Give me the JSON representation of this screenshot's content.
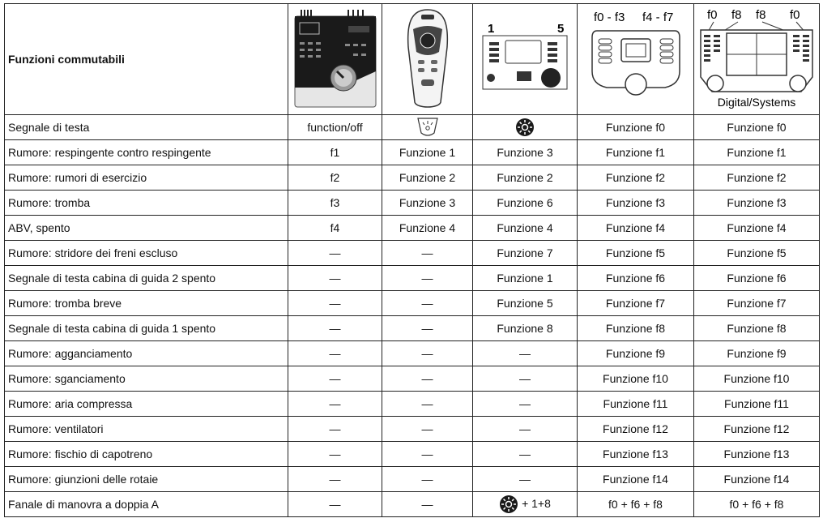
{
  "header": {
    "title": "Funzioni commutabili",
    "device3": [
      "1",
      "5"
    ],
    "device4": [
      "f0 - f3",
      "f4 - f7"
    ],
    "device5": {
      "keys": [
        "f0",
        "f8",
        "f8",
        "f0"
      ],
      "name": "Digital/Systems"
    }
  },
  "table": {
    "rows": [
      [
        "Segnale di testa",
        "function/off",
        null,
        null,
        "Funzione f0",
        "Funzione f0"
      ],
      [
        "Rumore: respingente contro respingente",
        "f1",
        "Funzione 1",
        "Funzione 3",
        "Funzione f1",
        "Funzione f1"
      ],
      [
        "Rumore: rumori di esercizio",
        "f2",
        "Funzione 2",
        "Funzione 2",
        "Funzione f2",
        "Funzione f2"
      ],
      [
        "Rumore: tromba",
        "f3",
        "Funzione 3",
        "Funzione 6",
        "Funzione f3",
        "Funzione f3"
      ],
      [
        "ABV, spento",
        "f4",
        "Funzione 4",
        "Funzione 4",
        "Funzione f4",
        "Funzione f4"
      ],
      [
        "Rumore: stridore dei freni escluso",
        "—",
        "—",
        "Funzione 7",
        "Funzione f5",
        "Funzione f5"
      ],
      [
        "Segnale di testa cabina di guida 2 spento",
        "—",
        "—",
        "Funzione 1",
        "Funzione f6",
        "Funzione f6"
      ],
      [
        "Rumore: tromba breve",
        "—",
        "—",
        "Funzione 5",
        "Funzione f7",
        "Funzione f7"
      ],
      [
        "Segnale di testa cabina di guida 1 spento",
        "—",
        "—",
        "Funzione 8",
        "Funzione f8",
        "Funzione f8"
      ],
      [
        "Rumore: agganciamento",
        "—",
        "—",
        "—",
        "Funzione f9",
        "Funzione f9"
      ],
      [
        "Rumore: sganciamento",
        "—",
        "—",
        "—",
        "Funzione f10",
        "Funzione f10"
      ],
      [
        "Rumore: aria compressa",
        "—",
        "—",
        "—",
        "Funzione f11",
        "Funzione f11"
      ],
      [
        "Rumore: ventilatori",
        "—",
        "—",
        "—",
        "Funzione f12",
        "Funzione f12"
      ],
      [
        "Rumore: fischio di capotreno",
        "—",
        "—",
        "—",
        "Funzione f13",
        "Funzione f13"
      ],
      [
        "Rumore: giunzioni delle rotaie",
        "—",
        "—",
        "—",
        "Funzione f14",
        "Funzione f14"
      ],
      [
        "Fanale di manovra a doppia A",
        "—",
        "—",
        "+ 1+8",
        "f0 + f6 + f8",
        "f0 + f6 + f8"
      ]
    ]
  }
}
